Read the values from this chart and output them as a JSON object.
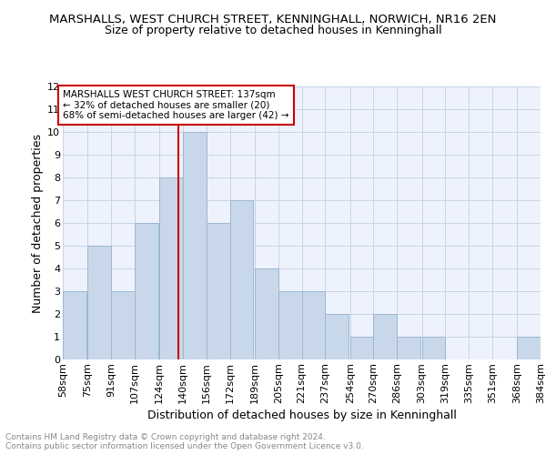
{
  "title": "MARSHALLS, WEST CHURCH STREET, KENNINGHALL, NORWICH, NR16 2EN",
  "subtitle": "Size of property relative to detached houses in Kenninghall",
  "xlabel": "Distribution of detached houses by size in Kenninghall",
  "ylabel": "Number of detached properties",
  "footer": "Contains HM Land Registry data © Crown copyright and database right 2024.\nContains public sector information licensed under the Open Government Licence v3.0.",
  "bin_labels": [
    "58sqm",
    "75sqm",
    "91sqm",
    "107sqm",
    "124sqm",
    "140sqm",
    "156sqm",
    "172sqm",
    "189sqm",
    "205sqm",
    "221sqm",
    "237sqm",
    "254sqm",
    "270sqm",
    "286sqm",
    "303sqm",
    "319sqm",
    "335sqm",
    "351sqm",
    "368sqm",
    "384sqm"
  ],
  "bin_lefts": [
    58,
    75,
    91,
    107,
    124,
    140,
    156,
    172,
    189,
    205,
    221,
    237,
    254,
    270,
    286,
    303,
    319,
    335,
    351,
    368
  ],
  "bin_width": 16,
  "counts": [
    3,
    5,
    3,
    6,
    8,
    10,
    6,
    7,
    4,
    3,
    3,
    2,
    1,
    2,
    1,
    1,
    0,
    0,
    0,
    1
  ],
  "bar_color": "#c8d8ea",
  "bar_edge_color": "#9ab8d0",
  "property_size": 137,
  "vline_color": "#cc0000",
  "annotation_text": "MARSHALLS WEST CHURCH STREET: 137sqm\n← 32% of detached houses are smaller (20)\n68% of semi-detached houses are larger (42) →",
  "annotation_box_edge": "#cc0000",
  "ylim": [
    0,
    12
  ],
  "yticks": [
    0,
    1,
    2,
    3,
    4,
    5,
    6,
    7,
    8,
    9,
    10,
    11,
    12
  ],
  "grid_color": "#c8d4e8",
  "background_color": "#eef2fc",
  "title_fontsize": 9.5,
  "subtitle_fontsize": 9,
  "ylabel_fontsize": 9,
  "xlabel_fontsize": 9,
  "tick_fontsize": 8,
  "annot_fontsize": 7.5,
  "footer_fontsize": 6.5,
  "footer_color": "#888888"
}
